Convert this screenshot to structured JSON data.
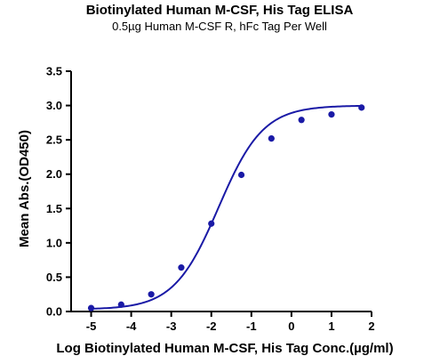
{
  "chart_data": {
    "type": "scatter",
    "title": "Biotinylated Human M-CSF, His Tag ELISA",
    "subtitle": "0.5µg Human M-CSF R, hFc Tag Per Well",
    "xlabel": "Log Biotinylated Human M-CSF, His Tag Conc.(µg/ml)",
    "ylabel": "Mean Abs.(OD450)",
    "xlim": [
      -5.5,
      2
    ],
    "ylim": [
      0,
      3.5
    ],
    "xticks": [
      -5,
      -4,
      -3,
      -2,
      -1,
      0,
      1,
      2
    ],
    "yticks": [
      0.0,
      0.5,
      1.0,
      1.5,
      2.0,
      2.5,
      3.0,
      3.5
    ],
    "xtick_labels": [
      "-5",
      "-4",
      "-3",
      "-2",
      "-1",
      "0",
      "1",
      "2"
    ],
    "ytick_labels": [
      "0.0",
      "0.5",
      "1.0",
      "1.5",
      "2.0",
      "2.5",
      "3.0",
      "3.5"
    ],
    "grid": false,
    "series": [
      {
        "points": [
          {
            "x": -5.0,
            "y": 0.05
          },
          {
            "x": -4.25,
            "y": 0.1
          },
          {
            "x": -3.5,
            "y": 0.25
          },
          {
            "x": -2.75,
            "y": 0.64
          },
          {
            "x": -2.0,
            "y": 1.28
          },
          {
            "x": -1.25,
            "y": 1.99
          },
          {
            "x": -0.5,
            "y": 2.52
          },
          {
            "x": 0.25,
            "y": 2.79
          },
          {
            "x": 1.0,
            "y": 2.87
          },
          {
            "x": 1.75,
            "y": 2.97
          }
        ],
        "fit": {
          "model": "4PL",
          "bottom": 0.03,
          "top": 3.0,
          "logEC50": -1.82,
          "hill": 0.78
        },
        "color": "#1a1aa6"
      }
    ]
  }
}
